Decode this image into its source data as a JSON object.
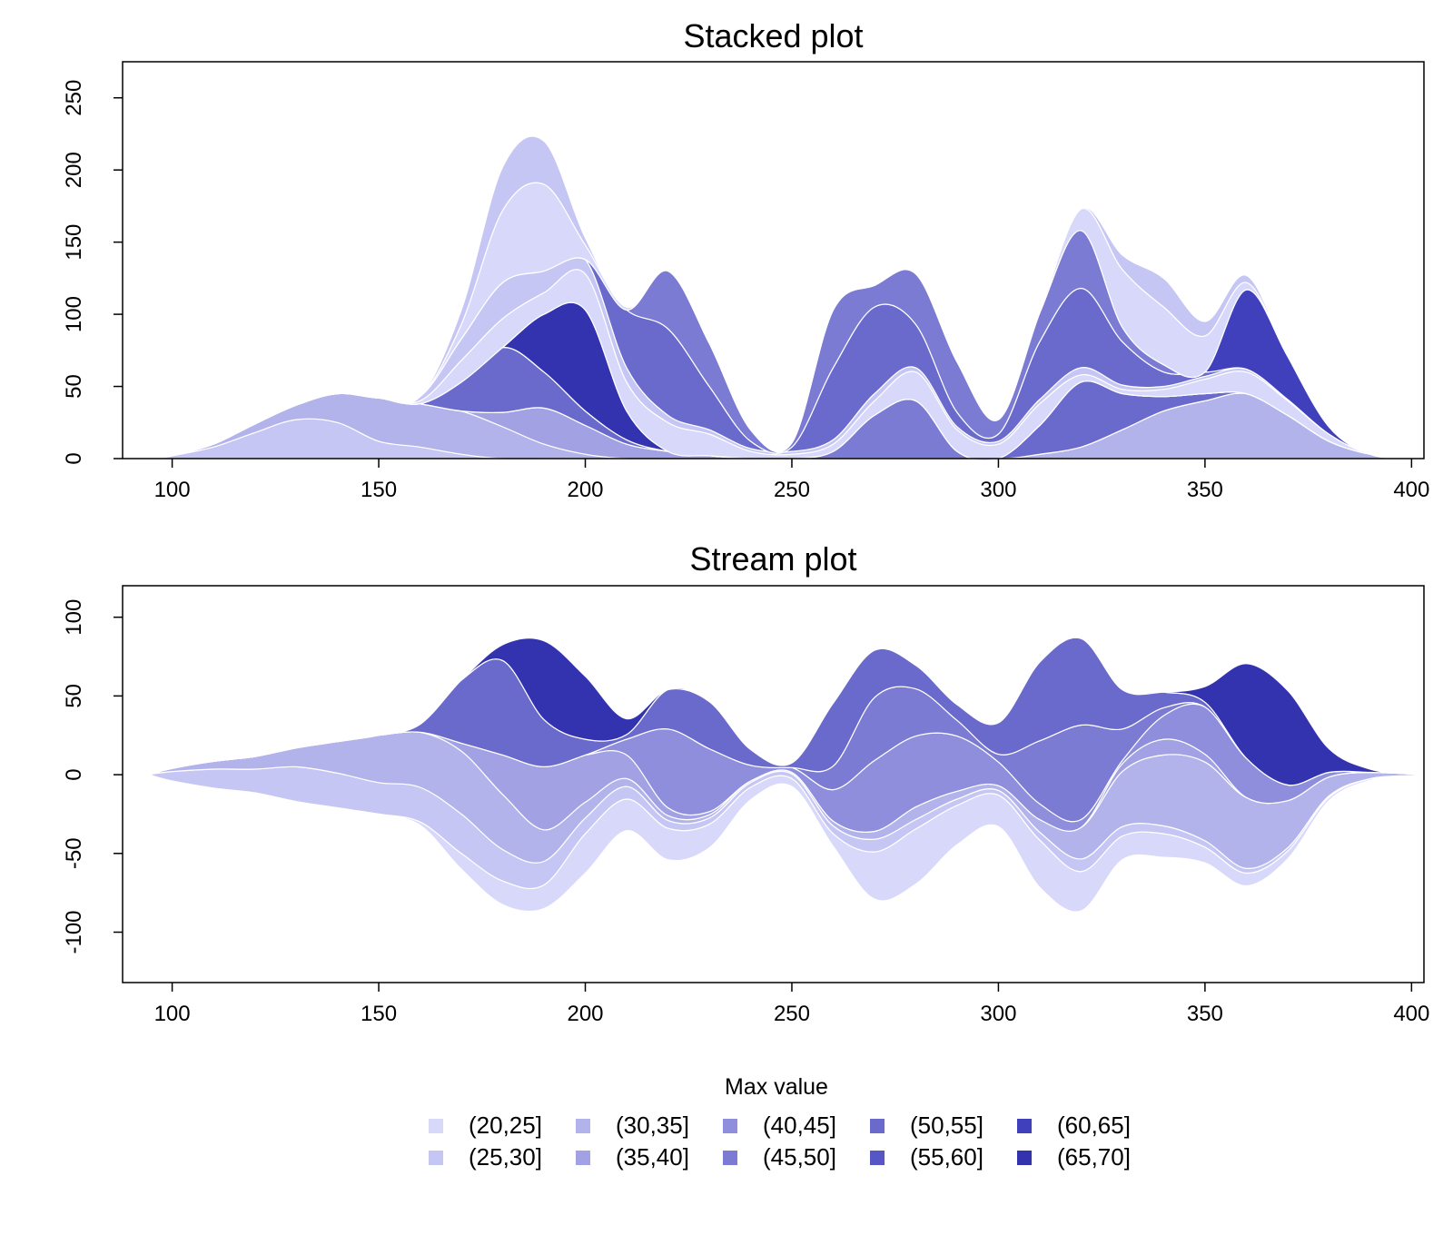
{
  "legend": {
    "title": "Max value",
    "items": [
      {
        "label": "(20,25]",
        "color": "#d8d8fa"
      },
      {
        "label": "(25,30]",
        "color": "#c6c6f4"
      },
      {
        "label": "(30,35]",
        "color": "#b3b3ec"
      },
      {
        "label": "(35,40]",
        "color": "#a1a1e4"
      },
      {
        "label": "(40,45]",
        "color": "#8e8edc"
      },
      {
        "label": "(45,50]",
        "color": "#7b7bd4"
      },
      {
        "label": "(50,55]",
        "color": "#6a6acc"
      },
      {
        "label": "(55,60]",
        "color": "#5656c4"
      },
      {
        "label": "(60,65]",
        "color": "#4040bc"
      },
      {
        "label": "(65,70]",
        "color": "#3333b0"
      }
    ]
  },
  "chart_data": [
    {
      "type": "area",
      "title": "Stacked plot",
      "xlabel": "",
      "ylabel": "",
      "xlim": [
        88,
        403
      ],
      "ylim": [
        0,
        275
      ],
      "xticks": [
        100,
        150,
        200,
        250,
        300,
        350,
        400
      ],
      "yticks": [
        0,
        50,
        100,
        150,
        200,
        250
      ],
      "x": [
        95,
        100,
        110,
        120,
        130,
        140,
        150,
        160,
        170,
        180,
        190,
        200,
        210,
        220,
        230,
        240,
        250,
        260,
        270,
        280,
        290,
        300,
        310,
        320,
        330,
        340,
        350,
        360,
        370,
        380,
        390,
        400
      ],
      "series": [
        {
          "name": "(25,30]",
          "values": [
            0,
            2,
            8,
            18,
            27,
            25,
            12,
            8,
            3,
            0,
            0,
            0,
            0,
            0,
            0,
            0,
            0,
            0,
            0,
            0,
            0,
            0,
            0,
            0,
            0,
            0,
            0,
            0,
            0,
            0,
            0,
            0
          ]
        },
        {
          "name": "(30,35]",
          "values": [
            0,
            0,
            2,
            6,
            10,
            20,
            30,
            30,
            30,
            22,
            10,
            3,
            0,
            0,
            0,
            0,
            0,
            0,
            0,
            0,
            0,
            0,
            3,
            8,
            20,
            33,
            40,
            45,
            30,
            12,
            3,
            0
          ]
        },
        {
          "name": "(35,40]",
          "values": [
            0,
            0,
            0,
            0,
            0,
            0,
            0,
            0,
            0,
            10,
            25,
            20,
            10,
            5,
            2,
            0,
            0,
            0,
            0,
            0,
            0,
            0,
            0,
            0,
            0,
            0,
            0,
            0,
            0,
            0,
            0,
            0
          ]
        },
        {
          "name": "(40,45]",
          "values": [
            0,
            0,
            0,
            0,
            0,
            0,
            0,
            0,
            0,
            0,
            0,
            0,
            0,
            0,
            0,
            0,
            0,
            0,
            0,
            0,
            0,
            0,
            0,
            0,
            0,
            0,
            0,
            0,
            0,
            0,
            0,
            0
          ]
        },
        {
          "name": "(45,50]",
          "values": [
            0,
            0,
            0,
            0,
            0,
            0,
            0,
            0,
            0,
            0,
            0,
            0,
            0,
            0,
            0,
            0,
            0,
            5,
            30,
            40,
            5,
            0,
            0,
            0,
            0,
            0,
            0,
            0,
            0,
            0,
            0,
            0
          ]
        },
        {
          "name": "(50,55]",
          "values": [
            0,
            0,
            0,
            0,
            0,
            0,
            0,
            0,
            20,
            45,
            25,
            10,
            3,
            0,
            0,
            0,
            0,
            0,
            0,
            0,
            0,
            0,
            20,
            45,
            25,
            10,
            5,
            0,
            0,
            0,
            0,
            0
          ]
        },
        {
          "name": "(55,60]",
          "values": [
            0,
            0,
            0,
            0,
            0,
            0,
            0,
            0,
            0,
            0,
            0,
            0,
            0,
            0,
            0,
            0,
            0,
            0,
            0,
            0,
            0,
            0,
            0,
            0,
            0,
            0,
            0,
            0,
            0,
            0,
            0,
            0
          ]
        },
        {
          "name": "(65,70]",
          "values": [
            0,
            0,
            0,
            0,
            0,
            0,
            0,
            0,
            0,
            0,
            40,
            70,
            20,
            0,
            0,
            0,
            0,
            0,
            0,
            0,
            0,
            0,
            0,
            0,
            0,
            0,
            0,
            0,
            0,
            0,
            0,
            0
          ]
        },
        {
          "name": "(20,25]",
          "values": [
            0,
            0,
            0,
            0,
            0,
            0,
            0,
            2,
            15,
            20,
            15,
            25,
            20,
            20,
            15,
            5,
            3,
            5,
            10,
            20,
            15,
            10,
            15,
            5,
            3,
            5,
            10,
            15,
            10,
            5,
            0,
            0
          ]
        },
        {
          "name": "(25,30]",
          "values": [
            0,
            0,
            0,
            0,
            0,
            0,
            0,
            3,
            15,
            25,
            15,
            10,
            10,
            5,
            3,
            2,
            2,
            3,
            5,
            3,
            2,
            2,
            3,
            5,
            3,
            2,
            2,
            2,
            1,
            0,
            0,
            0
          ]
        },
        {
          "name": "(50,55]",
          "values": [
            0,
            0,
            0,
            0,
            0,
            0,
            0,
            0,
            0,
            0,
            0,
            0,
            40,
            60,
            30,
            5,
            3,
            50,
            60,
            30,
            10,
            5,
            40,
            55,
            30,
            10,
            3,
            0,
            0,
            0,
            0,
            0
          ]
        },
        {
          "name": "(45,50]",
          "values": [
            0,
            0,
            0,
            0,
            0,
            0,
            0,
            0,
            0,
            0,
            0,
            0,
            0,
            40,
            30,
            8,
            3,
            40,
            15,
            35,
            35,
            10,
            20,
            40,
            10,
            5,
            0,
            0,
            0,
            0,
            0,
            0
          ]
        },
        {
          "name": "(60,65]",
          "values": [
            0,
            0,
            0,
            0,
            0,
            0,
            0,
            0,
            0,
            0,
            0,
            0,
            0,
            0,
            0,
            0,
            0,
            0,
            0,
            0,
            0,
            0,
            0,
            0,
            0,
            0,
            0,
            55,
            30,
            5,
            0,
            0
          ]
        },
        {
          "name": "(20,25]",
          "values": [
            0,
            0,
            0,
            0,
            0,
            0,
            0,
            0,
            10,
            50,
            60,
            10,
            2,
            0,
            0,
            0,
            0,
            0,
            0,
            0,
            0,
            0,
            0,
            15,
            40,
            40,
            25,
            5,
            0,
            0,
            0,
            0
          ]
        },
        {
          "name": "(25,30]",
          "values": [
            0,
            0,
            0,
            0,
            0,
            0,
            0,
            0,
            10,
            30,
            30,
            5,
            0,
            0,
            0,
            0,
            0,
            0,
            0,
            0,
            0,
            0,
            0,
            0,
            10,
            20,
            10,
            5,
            0,
            0,
            0,
            0
          ]
        }
      ]
    },
    {
      "type": "area",
      "title": "Stream plot",
      "xlabel": "",
      "ylabel": "",
      "xlim": [
        88,
        403
      ],
      "ylim": [
        -132,
        120
      ],
      "xticks": [
        100,
        150,
        200,
        250,
        300,
        350,
        400
      ],
      "yticks": [
        -100,
        -50,
        0,
        50,
        100
      ],
      "x": [
        95,
        100,
        110,
        120,
        130,
        140,
        150,
        160,
        170,
        180,
        190,
        200,
        210,
        220,
        230,
        240,
        250,
        260,
        270,
        280,
        290,
        300,
        310,
        320,
        330,
        340,
        350,
        360,
        370,
        380,
        390,
        400,
        403
      ],
      "series": [
        {
          "name": "(20,25]",
          "values": [
            0,
            0,
            0,
            0,
            0,
            0,
            0,
            2,
            10,
            15,
            15,
            25,
            20,
            20,
            15,
            8,
            5,
            8,
            30,
            35,
            25,
            20,
            30,
            25,
            15,
            15,
            10,
            8,
            5,
            2,
            1,
            0,
            0
          ]
        },
        {
          "name": "(25,30]",
          "values": [
            1,
            6,
            12,
            15,
            22,
            22,
            20,
            22,
            25,
            20,
            15,
            10,
            8,
            5,
            4,
            3,
            3,
            5,
            8,
            6,
            4,
            3,
            5,
            8,
            6,
            5,
            4,
            3,
            2,
            1,
            0,
            0,
            0
          ]
        },
        {
          "name": "(30,35]",
          "values": [
            0,
            2,
            5,
            8,
            12,
            20,
            30,
            35,
            40,
            35,
            20,
            10,
            5,
            3,
            2,
            1,
            1,
            3,
            5,
            8,
            5,
            3,
            8,
            20,
            35,
            45,
            50,
            45,
            30,
            12,
            4,
            1,
            0
          ]
        },
        {
          "name": "(35,40]",
          "values": [
            0,
            0,
            0,
            0,
            0,
            0,
            0,
            0,
            5,
            25,
            40,
            30,
            15,
            5,
            2,
            0,
            0,
            0,
            0,
            0,
            0,
            0,
            0,
            0,
            5,
            10,
            5,
            0,
            0,
            0,
            0,
            0,
            0
          ]
        },
        {
          "name": "(40,45]",
          "values": [
            0,
            0,
            0,
            0,
            0,
            0,
            0,
            0,
            0,
            0,
            0,
            0,
            10,
            50,
            40,
            10,
            3,
            20,
            45,
            45,
            35,
            15,
            10,
            5,
            2,
            15,
            30,
            25,
            10,
            3,
            0,
            0,
            0
          ]
        },
        {
          "name": "(45,50]",
          "values": [
            0,
            0,
            0,
            0,
            0,
            0,
            0,
            0,
            0,
            0,
            0,
            0,
            0,
            0,
            0,
            0,
            0,
            15,
            40,
            30,
            10,
            5,
            40,
            60,
            20,
            5,
            0,
            0,
            0,
            0,
            0,
            0,
            0
          ]
        },
        {
          "name": "(50,55]",
          "values": [
            0,
            0,
            0,
            0,
            0,
            0,
            0,
            5,
            40,
            60,
            30,
            10,
            3,
            25,
            30,
            10,
            3,
            40,
            30,
            15,
            10,
            20,
            50,
            55,
            25,
            10,
            3,
            0,
            0,
            0,
            0,
            0,
            0
          ]
        },
        {
          "name": "(65,70]",
          "values": [
            0,
            0,
            0,
            0,
            0,
            0,
            0,
            0,
            0,
            10,
            50,
            40,
            10,
            0,
            0,
            0,
            0,
            0,
            0,
            0,
            0,
            0,
            0,
            0,
            0,
            0,
            10,
            60,
            60,
            15,
            2,
            0,
            0
          ]
        }
      ]
    }
  ]
}
